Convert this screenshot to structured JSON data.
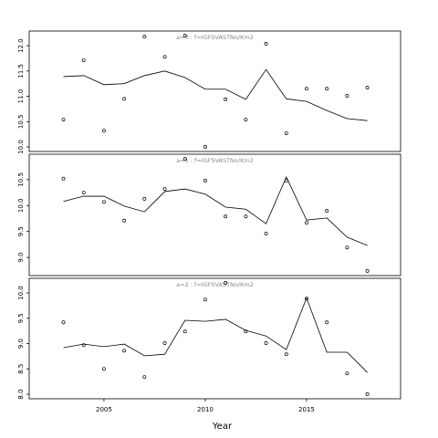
{
  "chart_data": [
    {
      "type": "line",
      "title": "a=0 : f=IGFSVASTNo/Km2",
      "x": [
        2003,
        2004,
        2005,
        2006,
        2007,
        2008,
        2009,
        2010,
        2011,
        2012,
        2013,
        2014,
        2015,
        2016,
        2017,
        2018
      ],
      "xlim": [
        2001.31,
        2019.64
      ],
      "ylim": [
        9.91,
        12.29
      ],
      "yticks": [
        {
          "value": 10,
          "label": "10.0"
        },
        10.5,
        {
          "value": 11,
          "label": "11.0"
        },
        11.5,
        {
          "value": 12,
          "label": "12.0"
        }
      ],
      "series": [
        {
          "style": "points",
          "color": "#000000",
          "values": [
            10.54,
            11.71,
            10.32,
            10.95,
            12.18,
            11.78,
            12.2,
            10.0,
            10.94,
            10.54,
            12.04,
            10.27,
            11.15,
            11.15,
            11.01,
            11.17
          ]
        },
        {
          "style": "line",
          "color": "#000000",
          "values": [
            11.39,
            11.41,
            11.23,
            11.25,
            11.41,
            11.5,
            11.37,
            11.14,
            11.14,
            10.94,
            11.53,
            10.95,
            10.9,
            10.72,
            10.56,
            10.52
          ]
        }
      ]
    },
    {
      "type": "line",
      "title": "a=1 : f=IGFSVASTNo/Km2",
      "x": [
        2003,
        2004,
        2005,
        2006,
        2007,
        2008,
        2009,
        2010,
        2011,
        2012,
        2013,
        2014,
        2015,
        2016,
        2017,
        2018
      ],
      "xlim": [
        2001.31,
        2019.64
      ],
      "ylim": [
        8.65,
        10.99
      ],
      "yticks": [
        {
          "value": 9,
          "label": "9.0"
        },
        9.5,
        {
          "value": 10,
          "label": "10.0"
        },
        10.5
      ],
      "series": [
        {
          "style": "points",
          "color": "#000000",
          "values": [
            10.52,
            10.25,
            10.07,
            9.71,
            10.13,
            10.32,
            10.9,
            10.48,
            9.79,
            9.79,
            9.46,
            10.48,
            9.67,
            9.9,
            9.19,
            8.74
          ]
        },
        {
          "style": "line",
          "color": "#000000",
          "values": [
            10.08,
            10.18,
            10.18,
            9.99,
            9.88,
            10.27,
            10.32,
            10.22,
            9.97,
            9.93,
            9.65,
            10.55,
            9.72,
            9.76,
            9.39,
            9.23
          ]
        }
      ]
    },
    {
      "type": "line",
      "title": "a=2 : f=IGFSVASTNo/Km2",
      "xlabel": "Year",
      "x": [
        2003,
        2004,
        2005,
        2006,
        2007,
        2008,
        2009,
        2010,
        2011,
        2012,
        2013,
        2014,
        2015,
        2016,
        2017,
        2018
      ],
      "xlim": [
        2001.31,
        2019.64
      ],
      "xticks": [
        2005,
        2010,
        2015
      ],
      "ylim": [
        7.91,
        10.29
      ],
      "yticks": [
        {
          "value": 8,
          "label": "8.0"
        },
        8.5,
        {
          "value": 9,
          "label": "9.0"
        },
        9.5,
        {
          "value": 10,
          "label": "10.0"
        }
      ],
      "series": [
        {
          "style": "points",
          "color": "#000000",
          "values": [
            9.42,
            8.97,
            8.5,
            8.86,
            8.34,
            9.01,
            9.24,
            9.87,
            10.2,
            9.24,
            9.01,
            8.79,
            9.89,
            9.42,
            8.41,
            8.0
          ]
        },
        {
          "style": "line",
          "color": "#000000",
          "values": [
            8.92,
            8.99,
            8.94,
            8.99,
            8.76,
            8.79,
            9.46,
            9.44,
            9.48,
            9.26,
            9.15,
            8.88,
            9.9,
            8.83,
            8.83,
            8.43
          ]
        }
      ]
    }
  ]
}
